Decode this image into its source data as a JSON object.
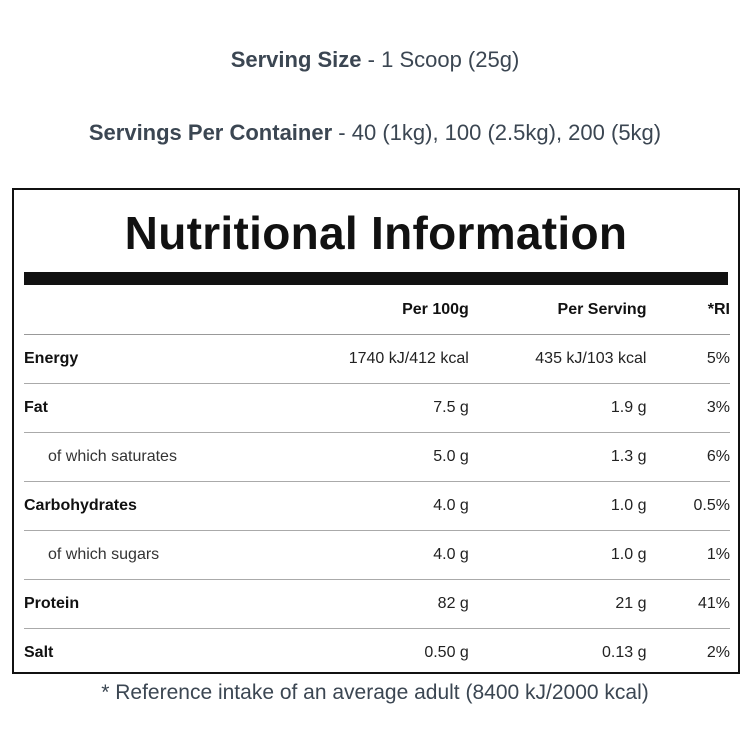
{
  "header": {
    "serving_size": {
      "label": "Serving Size",
      "separator": " - ",
      "value": "1 Scoop (25g)"
    },
    "servings_per_container": {
      "label": "Servings Per Container",
      "separator": " - ",
      "value": "40 (1kg), 100 (2.5kg), 200 (5kg)"
    }
  },
  "panel": {
    "title": "Nutritional Information",
    "columns": [
      "",
      "Per 100g",
      "Per Serving",
      "*RI"
    ],
    "rows": [
      {
        "name": "Energy",
        "per_100g": "1740 kJ/412 kcal",
        "per_serving": "435 kJ/103 kcal",
        "ri": "5%",
        "sub": false
      },
      {
        "name": "Fat",
        "per_100g": "7.5 g",
        "per_serving": "1.9 g",
        "ri": "3%",
        "sub": false
      },
      {
        "name": "of which saturates",
        "per_100g": "5.0 g",
        "per_serving": "1.3 g",
        "ri": "6%",
        "sub": true
      },
      {
        "name": "Carbohydrates",
        "per_100g": "4.0 g",
        "per_serving": "1.0 g",
        "ri": "0.5%",
        "sub": false
      },
      {
        "name": "of which sugars",
        "per_100g": "4.0 g",
        "per_serving": "1.0 g",
        "ri": "1%",
        "sub": true
      },
      {
        "name": "Protein",
        "per_100g": "82 g",
        "per_serving": "21 g",
        "ri": "41%",
        "sub": false
      },
      {
        "name": "Salt",
        "per_100g": "0.50 g",
        "per_serving": "0.13 g",
        "ri": "2%",
        "sub": false
      }
    ]
  },
  "footnote": "* Reference intake of an average adult (8400 kJ/2000 kcal)"
}
